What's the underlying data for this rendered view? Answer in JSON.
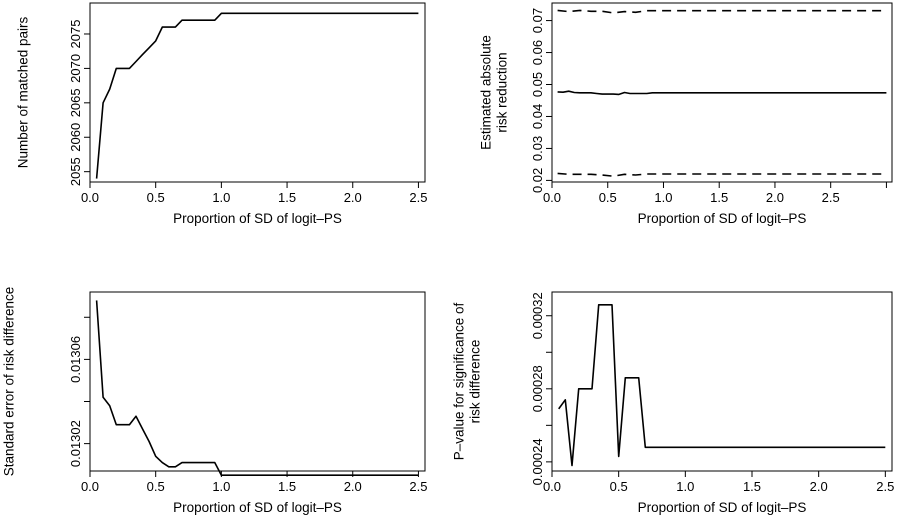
{
  "chart_data": [
    {
      "id": "tl",
      "type": "line",
      "title": "",
      "xlabel": "Proportion of SD of logit–PS",
      "ylabel": [
        "Number of matched pairs"
      ],
      "xlim": [
        0,
        2.55
      ],
      "ylim": [
        2053.5,
        2079.5
      ],
      "xticks": [
        0.0,
        0.5,
        1.0,
        1.5,
        2.0,
        2.5
      ],
      "xtick_labels": [
        "0.0",
        "0.5",
        "1.0",
        "1.5",
        "2.0",
        "2.5"
      ],
      "yticks": [
        2055,
        2060,
        2065,
        2070,
        2075
      ],
      "ytick_labels": [
        "2055",
        "2060",
        "2065",
        "2070",
        "2075"
      ],
      "extra_yticks": [],
      "grid": false,
      "series": [
        {
          "style": "solid",
          "x": [
            0.05,
            0.1,
            0.15,
            0.2,
            0.25,
            0.3,
            0.35,
            0.4,
            0.45,
            0.5,
            0.55,
            0.6,
            0.65,
            0.7,
            0.75,
            0.8,
            0.85,
            0.9,
            0.95,
            1.0,
            1.5,
            2.0,
            2.5
          ],
          "y": [
            2054,
            2065,
            2067,
            2070,
            2070,
            2070,
            2071,
            2072,
            2073,
            2074,
            2076,
            2076,
            2076,
            2077,
            2077,
            2077,
            2077,
            2077,
            2077,
            2078,
            2078,
            2078,
            2078
          ]
        }
      ]
    },
    {
      "id": "tr",
      "type": "line",
      "title": "",
      "xlabel": "Proportion of SD of logit–PS",
      "ylabel": [
        "Estimated absolute",
        "risk reduction"
      ],
      "xlim": [
        0.0,
        3.05
      ],
      "ylim": [
        0.0195,
        0.0755
      ],
      "xticks": [
        0.0,
        0.5,
        1.0,
        1.5,
        2.0,
        2.5
      ],
      "xtick_labels": [
        "0.0",
        "0.5",
        "1.0",
        "1.5",
        "2.0",
        "2.5"
      ],
      "yticks": [
        0.02,
        0.03,
        0.04,
        0.05,
        0.06,
        0.07
      ],
      "ytick_labels": [
        "0.02",
        "0.03",
        "0.04",
        "0.05",
        "0.06",
        "0.07"
      ],
      "extra_xticks": [
        3.0
      ],
      "grid": false,
      "series": [
        {
          "style": "dashed",
          "x": [
            0.05,
            0.15,
            0.25,
            0.35,
            0.45,
            0.55,
            0.65,
            0.75,
            0.85,
            0.95,
            1.5,
            2.0,
            2.5,
            3.0
          ],
          "y": [
            0.0732,
            0.0728,
            0.0732,
            0.0729,
            0.0729,
            0.0724,
            0.0728,
            0.0726,
            0.0731,
            0.0731,
            0.0731,
            0.0731,
            0.0731,
            0.0731
          ]
        },
        {
          "style": "solid",
          "x": [
            0.05,
            0.1,
            0.15,
            0.2,
            0.25,
            0.3,
            0.35,
            0.4,
            0.45,
            0.5,
            0.55,
            0.6,
            0.65,
            0.7,
            0.75,
            0.8,
            0.85,
            0.9,
            0.95,
            1.0,
            1.5,
            2.0,
            2.5,
            3.0
          ],
          "y": [
            0.0477,
            0.0476,
            0.0479,
            0.0475,
            0.0474,
            0.0474,
            0.0474,
            0.0472,
            0.047,
            0.047,
            0.047,
            0.0469,
            0.0475,
            0.0472,
            0.0472,
            0.0472,
            0.0472,
            0.0474,
            0.0474,
            0.0474,
            0.0474,
            0.0474,
            0.0474,
            0.0474
          ]
        },
        {
          "style": "dashed",
          "x": [
            0.05,
            0.15,
            0.25,
            0.35,
            0.45,
            0.55,
            0.65,
            0.75,
            0.85,
            0.95,
            1.5,
            2.0,
            2.5,
            3.0
          ],
          "y": [
            0.0222,
            0.0219,
            0.0219,
            0.0219,
            0.0217,
            0.0213,
            0.0219,
            0.0217,
            0.022,
            0.022,
            0.022,
            0.022,
            0.022,
            0.022
          ]
        }
      ]
    },
    {
      "id": "bl",
      "type": "line",
      "title": "",
      "xlabel": "Proportion of SD of logit–PS",
      "ylabel": [
        "Standard error of risk difference"
      ],
      "xlim": [
        0,
        2.55
      ],
      "ylim": [
        0.013007,
        0.013092
      ],
      "xticks": [
        0.0,
        0.5,
        1.0,
        1.5,
        2.0,
        2.5
      ],
      "xtick_labels": [
        "0.0",
        "0.5",
        "1.0",
        "1.5",
        "2.0",
        "2.5"
      ],
      "yticks": [
        0.01302,
        0.01306
      ],
      "ytick_labels": [
        "0.01302",
        "0.01306"
      ],
      "extra_yticks": [
        0.013,
        0.01304,
        0.01308
      ],
      "grid": false,
      "series": [
        {
          "style": "solid",
          "x": [
            0.05,
            0.1,
            0.15,
            0.2,
            0.25,
            0.3,
            0.35,
            0.4,
            0.45,
            0.5,
            0.55,
            0.6,
            0.65,
            0.7,
            0.75,
            0.8,
            0.85,
            0.9,
            0.95,
            1.0,
            1.5,
            2.0,
            2.5
          ],
          "y": [
            0.013088,
            0.013042,
            0.013038,
            0.013029,
            0.013029,
            0.013029,
            0.013033,
            0.013027,
            0.013021,
            0.013014,
            0.013011,
            0.013009,
            0.013009,
            0.013011,
            0.013011,
            0.013011,
            0.013011,
            0.013011,
            0.013011,
            0.013005,
            0.013005,
            0.013005,
            0.013005
          ]
        }
      ]
    },
    {
      "id": "br",
      "type": "line",
      "title": "",
      "xlabel": "Proportion of SD of logit–PS",
      "ylabel": [
        "P–value for significance of",
        "risk difference"
      ],
      "xlim": [
        0.0,
        2.55
      ],
      "ylim": [
        0.000235,
        0.000333
      ],
      "xticks": [
        0.0,
        0.5,
        1.0,
        1.5,
        2.0,
        2.5
      ],
      "xtick_labels": [
        "0.0",
        "0.5",
        "1.0",
        "1.5",
        "2.0",
        "2.5"
      ],
      "yticks": [
        0.00024,
        0.00028,
        0.00032
      ],
      "ytick_labels": [
        "0.00024",
        "0.00028",
        "0.00032"
      ],
      "extra_yticks": [
        0.00026,
        0.0003
      ],
      "grid": false,
      "series": [
        {
          "style": "solid",
          "x": [
            0.05,
            0.1,
            0.15,
            0.2,
            0.25,
            0.3,
            0.35,
            0.4,
            0.45,
            0.5,
            0.55,
            0.6,
            0.65,
            0.7,
            0.75,
            1.0,
            1.5,
            2.0,
            2.5
          ],
          "y": [
            0.000269,
            0.000274,
            0.000238,
            0.00028,
            0.00028,
            0.00028,
            0.000326,
            0.000326,
            0.000326,
            0.000243,
            0.000286,
            0.000286,
            0.000286,
            0.000248,
            0.000248,
            0.000248,
            0.000248,
            0.000248,
            0.000248
          ]
        }
      ]
    }
  ]
}
